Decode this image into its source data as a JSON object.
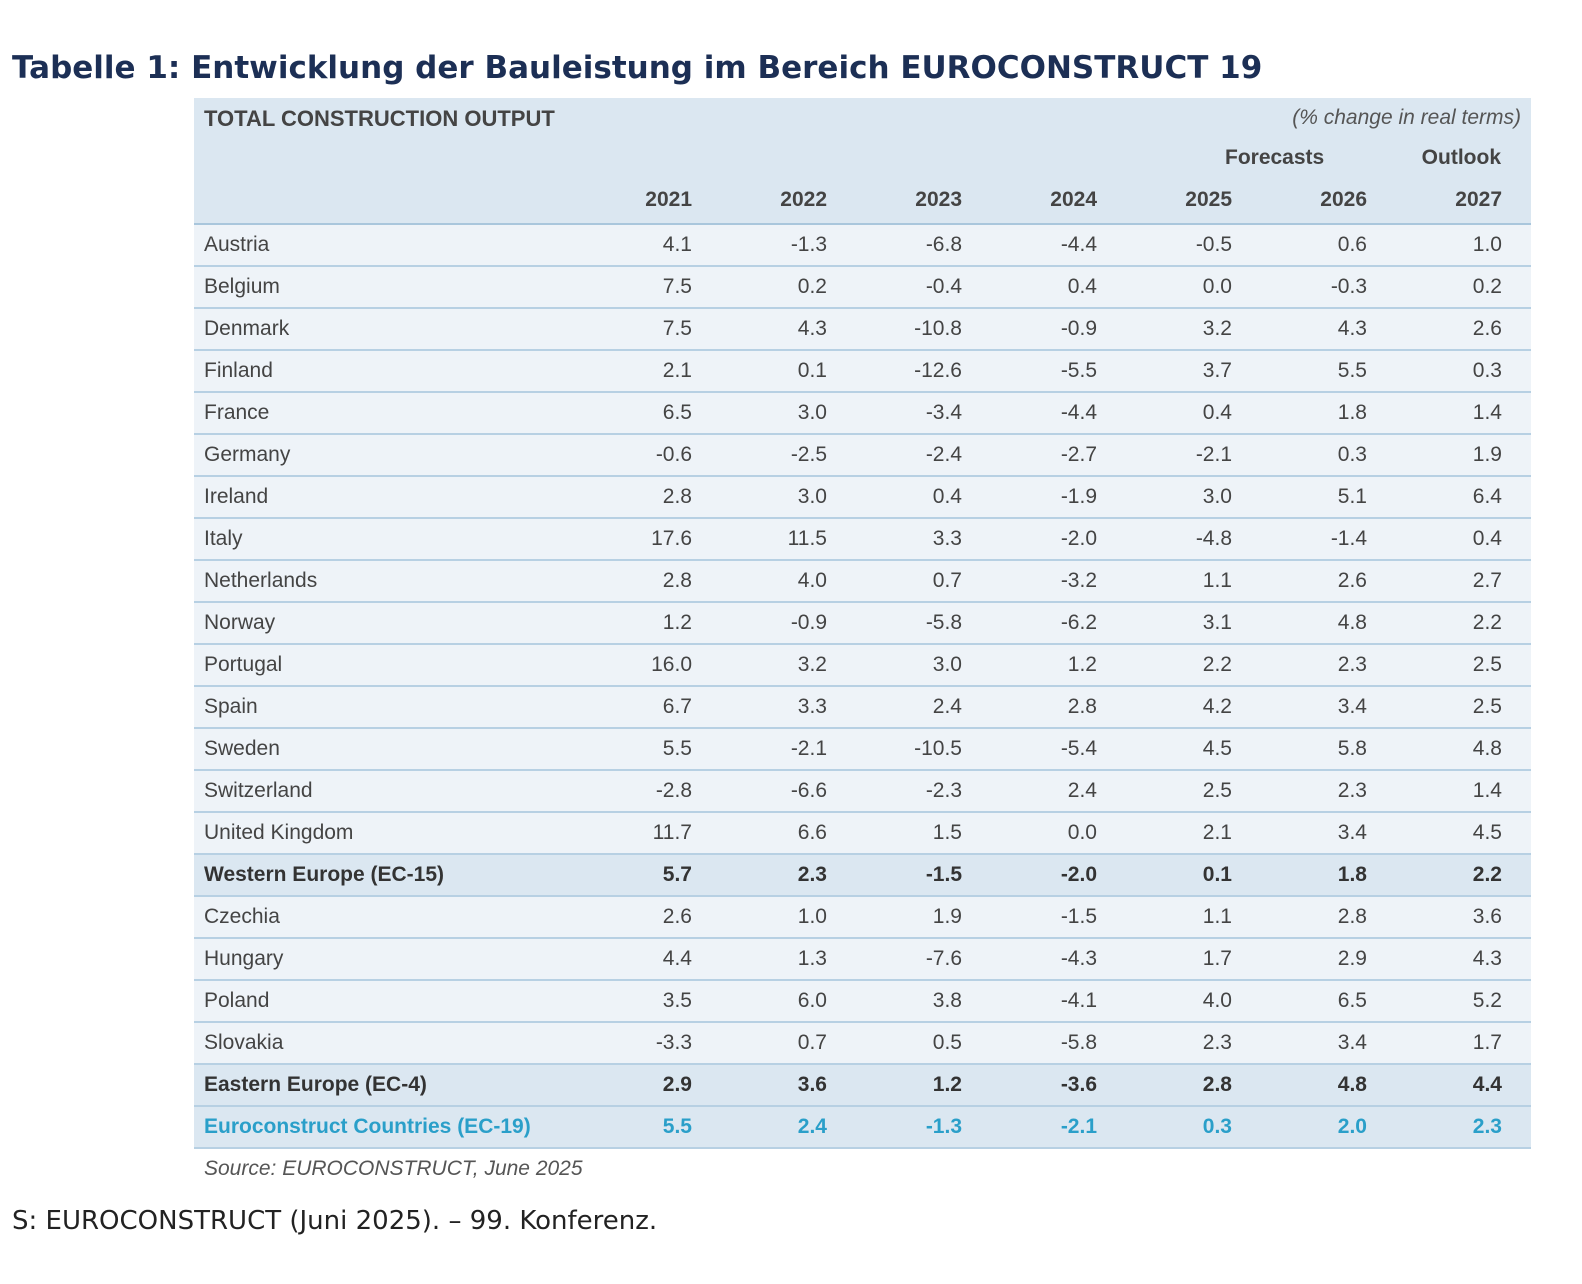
{
  "document_title": "Tabelle 1: Entwicklung der Bauleistung im Bereich EUROCONSTRUCT 19",
  "table": {
    "title": "TOTAL CONSTRUCTION OUTPUT",
    "unit_note": "(% change in real terms)",
    "forecasts_label": "Forecasts",
    "outlook_label": "Outlook",
    "years": [
      "2021",
      "2022",
      "2023",
      "2024",
      "2025",
      "2026",
      "2027"
    ],
    "rows": [
      {
        "label": "Austria",
        "values": [
          "4.1",
          "-1.3",
          "-6.8",
          "-4.4",
          "-0.5",
          "0.6",
          "1.0"
        ],
        "kind": "normal"
      },
      {
        "label": "Belgium",
        "values": [
          "7.5",
          "0.2",
          "-0.4",
          "0.4",
          "0.0",
          "-0.3",
          "0.2"
        ],
        "kind": "normal"
      },
      {
        "label": "Denmark",
        "values": [
          "7.5",
          "4.3",
          "-10.8",
          "-0.9",
          "3.2",
          "4.3",
          "2.6"
        ],
        "kind": "normal"
      },
      {
        "label": "Finland",
        "values": [
          "2.1",
          "0.1",
          "-12.6",
          "-5.5",
          "3.7",
          "5.5",
          "0.3"
        ],
        "kind": "normal"
      },
      {
        "label": "France",
        "values": [
          "6.5",
          "3.0",
          "-3.4",
          "-4.4",
          "0.4",
          "1.8",
          "1.4"
        ],
        "kind": "normal"
      },
      {
        "label": "Germany",
        "values": [
          "-0.6",
          "-2.5",
          "-2.4",
          "-2.7",
          "-2.1",
          "0.3",
          "1.9"
        ],
        "kind": "normal"
      },
      {
        "label": "Ireland",
        "values": [
          "2.8",
          "3.0",
          "0.4",
          "-1.9",
          "3.0",
          "5.1",
          "6.4"
        ],
        "kind": "normal"
      },
      {
        "label": "Italy",
        "values": [
          "17.6",
          "11.5",
          "3.3",
          "-2.0",
          "-4.8",
          "-1.4",
          "0.4"
        ],
        "kind": "normal"
      },
      {
        "label": "Netherlands",
        "values": [
          "2.8",
          "4.0",
          "0.7",
          "-3.2",
          "1.1",
          "2.6",
          "2.7"
        ],
        "kind": "normal"
      },
      {
        "label": "Norway",
        "values": [
          "1.2",
          "-0.9",
          "-5.8",
          "-6.2",
          "3.1",
          "4.8",
          "2.2"
        ],
        "kind": "normal"
      },
      {
        "label": "Portugal",
        "values": [
          "16.0",
          "3.2",
          "3.0",
          "1.2",
          "2.2",
          "2.3",
          "2.5"
        ],
        "kind": "normal"
      },
      {
        "label": "Spain",
        "values": [
          "6.7",
          "3.3",
          "2.4",
          "2.8",
          "4.2",
          "3.4",
          "2.5"
        ],
        "kind": "normal"
      },
      {
        "label": "Sweden",
        "values": [
          "5.5",
          "-2.1",
          "-10.5",
          "-5.4",
          "4.5",
          "5.8",
          "4.8"
        ],
        "kind": "normal"
      },
      {
        "label": "Switzerland",
        "values": [
          "-2.8",
          "-6.6",
          "-2.3",
          "2.4",
          "2.5",
          "2.3",
          "1.4"
        ],
        "kind": "normal"
      },
      {
        "label": "United Kingdom",
        "values": [
          "11.7",
          "6.6",
          "1.5",
          "0.0",
          "2.1",
          "3.4",
          "4.5"
        ],
        "kind": "normal"
      },
      {
        "label": "Western Europe (EC-15)",
        "values": [
          "5.7",
          "2.3",
          "-1.5",
          "-2.0",
          "0.1",
          "1.8",
          "2.2"
        ],
        "kind": "sub"
      },
      {
        "label": "Czechia",
        "values": [
          "2.6",
          "1.0",
          "1.9",
          "-1.5",
          "1.1",
          "2.8",
          "3.6"
        ],
        "kind": "normal"
      },
      {
        "label": "Hungary",
        "values": [
          "4.4",
          "1.3",
          "-7.6",
          "-4.3",
          "1.7",
          "2.9",
          "4.3"
        ],
        "kind": "normal"
      },
      {
        "label": "Poland",
        "values": [
          "3.5",
          "6.0",
          "3.8",
          "-4.1",
          "4.0",
          "6.5",
          "5.2"
        ],
        "kind": "normal"
      },
      {
        "label": "Slovakia",
        "values": [
          "-3.3",
          "0.7",
          "0.5",
          "-5.8",
          "2.3",
          "3.4",
          "1.7"
        ],
        "kind": "normal"
      },
      {
        "label": "Eastern Europe (EC-4)",
        "values": [
          "2.9",
          "3.6",
          "1.2",
          "-3.6",
          "2.8",
          "4.8",
          "4.4"
        ],
        "kind": "sub"
      },
      {
        "label": "Euroconstruct Countries (EC-19)",
        "values": [
          "5.5",
          "2.4",
          "-1.3",
          "-2.1",
          "0.3",
          "2.0",
          "2.3"
        ],
        "kind": "total"
      }
    ],
    "source": "Source: EUROCONSTRUCT, June 2025"
  },
  "caption": "S: EUROCONSTRUCT (Juni 2025). – 99. Konferenz.",
  "colors": {
    "title": "#1c2f55",
    "header_bg": "#dbe7f1",
    "row_bg": "#eef3f8",
    "total_text": "#2a9fc9"
  }
}
